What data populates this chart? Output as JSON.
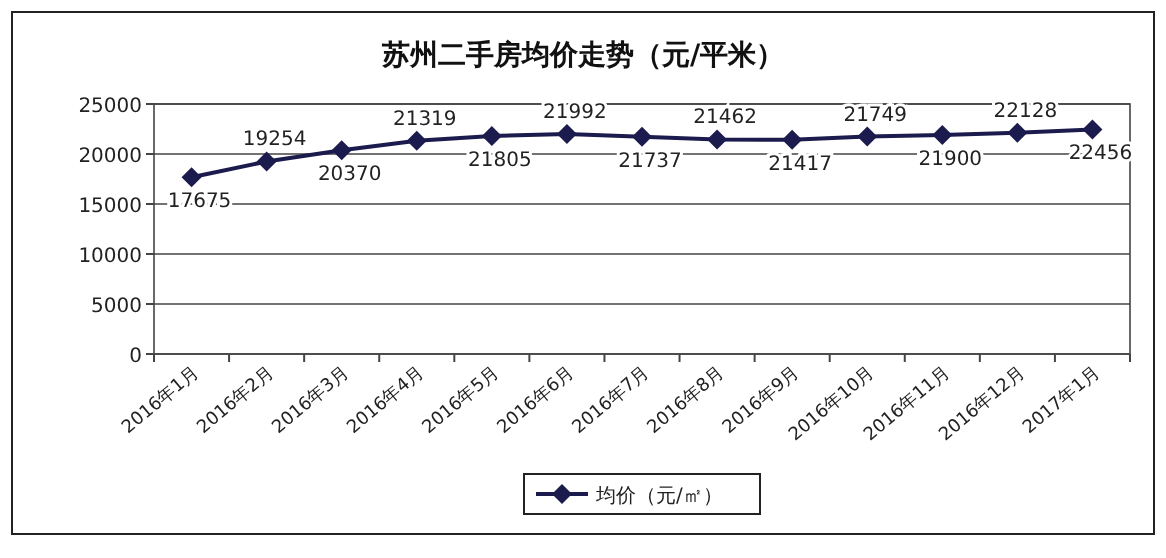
{
  "chart_data": {
    "type": "line",
    "title": "苏州二手房均价走势（元/平米）",
    "categories": [
      "2016年1月",
      "2016年2月",
      "2016年3月",
      "2016年4月",
      "2016年5月",
      "2016年6月",
      "2016年7月",
      "2016年8月",
      "2016年9月",
      "2016年10月",
      "2016年11月",
      "2016年12月",
      "2017年1月"
    ],
    "series": [
      {
        "name": "均价（元/㎡）",
        "color": "#1b1b4d",
        "values": [
          17675,
          19254,
          20370,
          21319,
          21805,
          21992,
          21737,
          21462,
          21417,
          21749,
          21900,
          22128,
          22456
        ]
      }
    ],
    "ylim": [
      0,
      25000
    ],
    "yticks": [
      0,
      5000,
      10000,
      15000,
      20000,
      25000
    ],
    "grid": "y",
    "legend": "bottom",
    "marker": "diamond",
    "line_style": "solid",
    "data_labels": true
  }
}
